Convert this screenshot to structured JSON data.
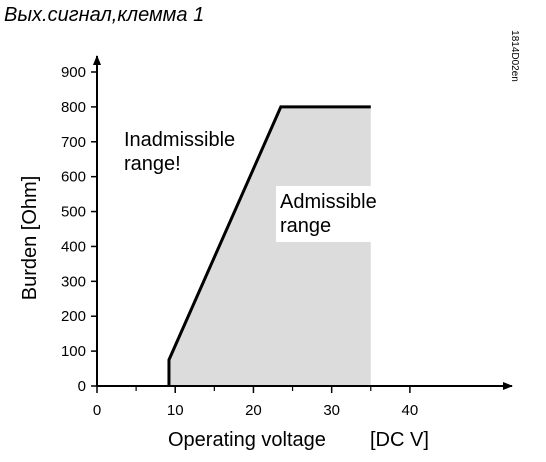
{
  "header": {
    "title": "Вых.сигнал,клемма 1"
  },
  "doc_code": "1814D02en",
  "chart_data": {
    "type": "area",
    "xlabel": "Operating voltage",
    "xunit": "[DC V]",
    "ylabel": "Burden [Ohm]",
    "xlim": [
      0,
      45
    ],
    "ylim": [
      0,
      900
    ],
    "x_ticks": [
      0,
      10,
      20,
      30,
      40
    ],
    "x_minor_ticks": [
      5,
      15,
      25,
      35
    ],
    "y_ticks": [
      0,
      100,
      200,
      300,
      400,
      500,
      600,
      700,
      800,
      900
    ],
    "boundary": {
      "x": [
        9.2,
        9.2,
        23.5,
        35
      ],
      "y": [
        0,
        75,
        800,
        800
      ]
    },
    "admissible_region": {
      "x": [
        9.2,
        9.2,
        23.5,
        35,
        35
      ],
      "y": [
        0,
        75,
        800,
        800,
        0
      ]
    },
    "annotations": [
      {
        "id": "inadmissible",
        "lines": [
          "Inadmissible",
          "range!"
        ]
      },
      {
        "id": "admissible",
        "lines": [
          "Admissible",
          "range"
        ]
      }
    ],
    "colors": {
      "region_fill": "#dcdcdc",
      "boundary": "#000000",
      "axis": "#000000"
    },
    "grid": false
  }
}
